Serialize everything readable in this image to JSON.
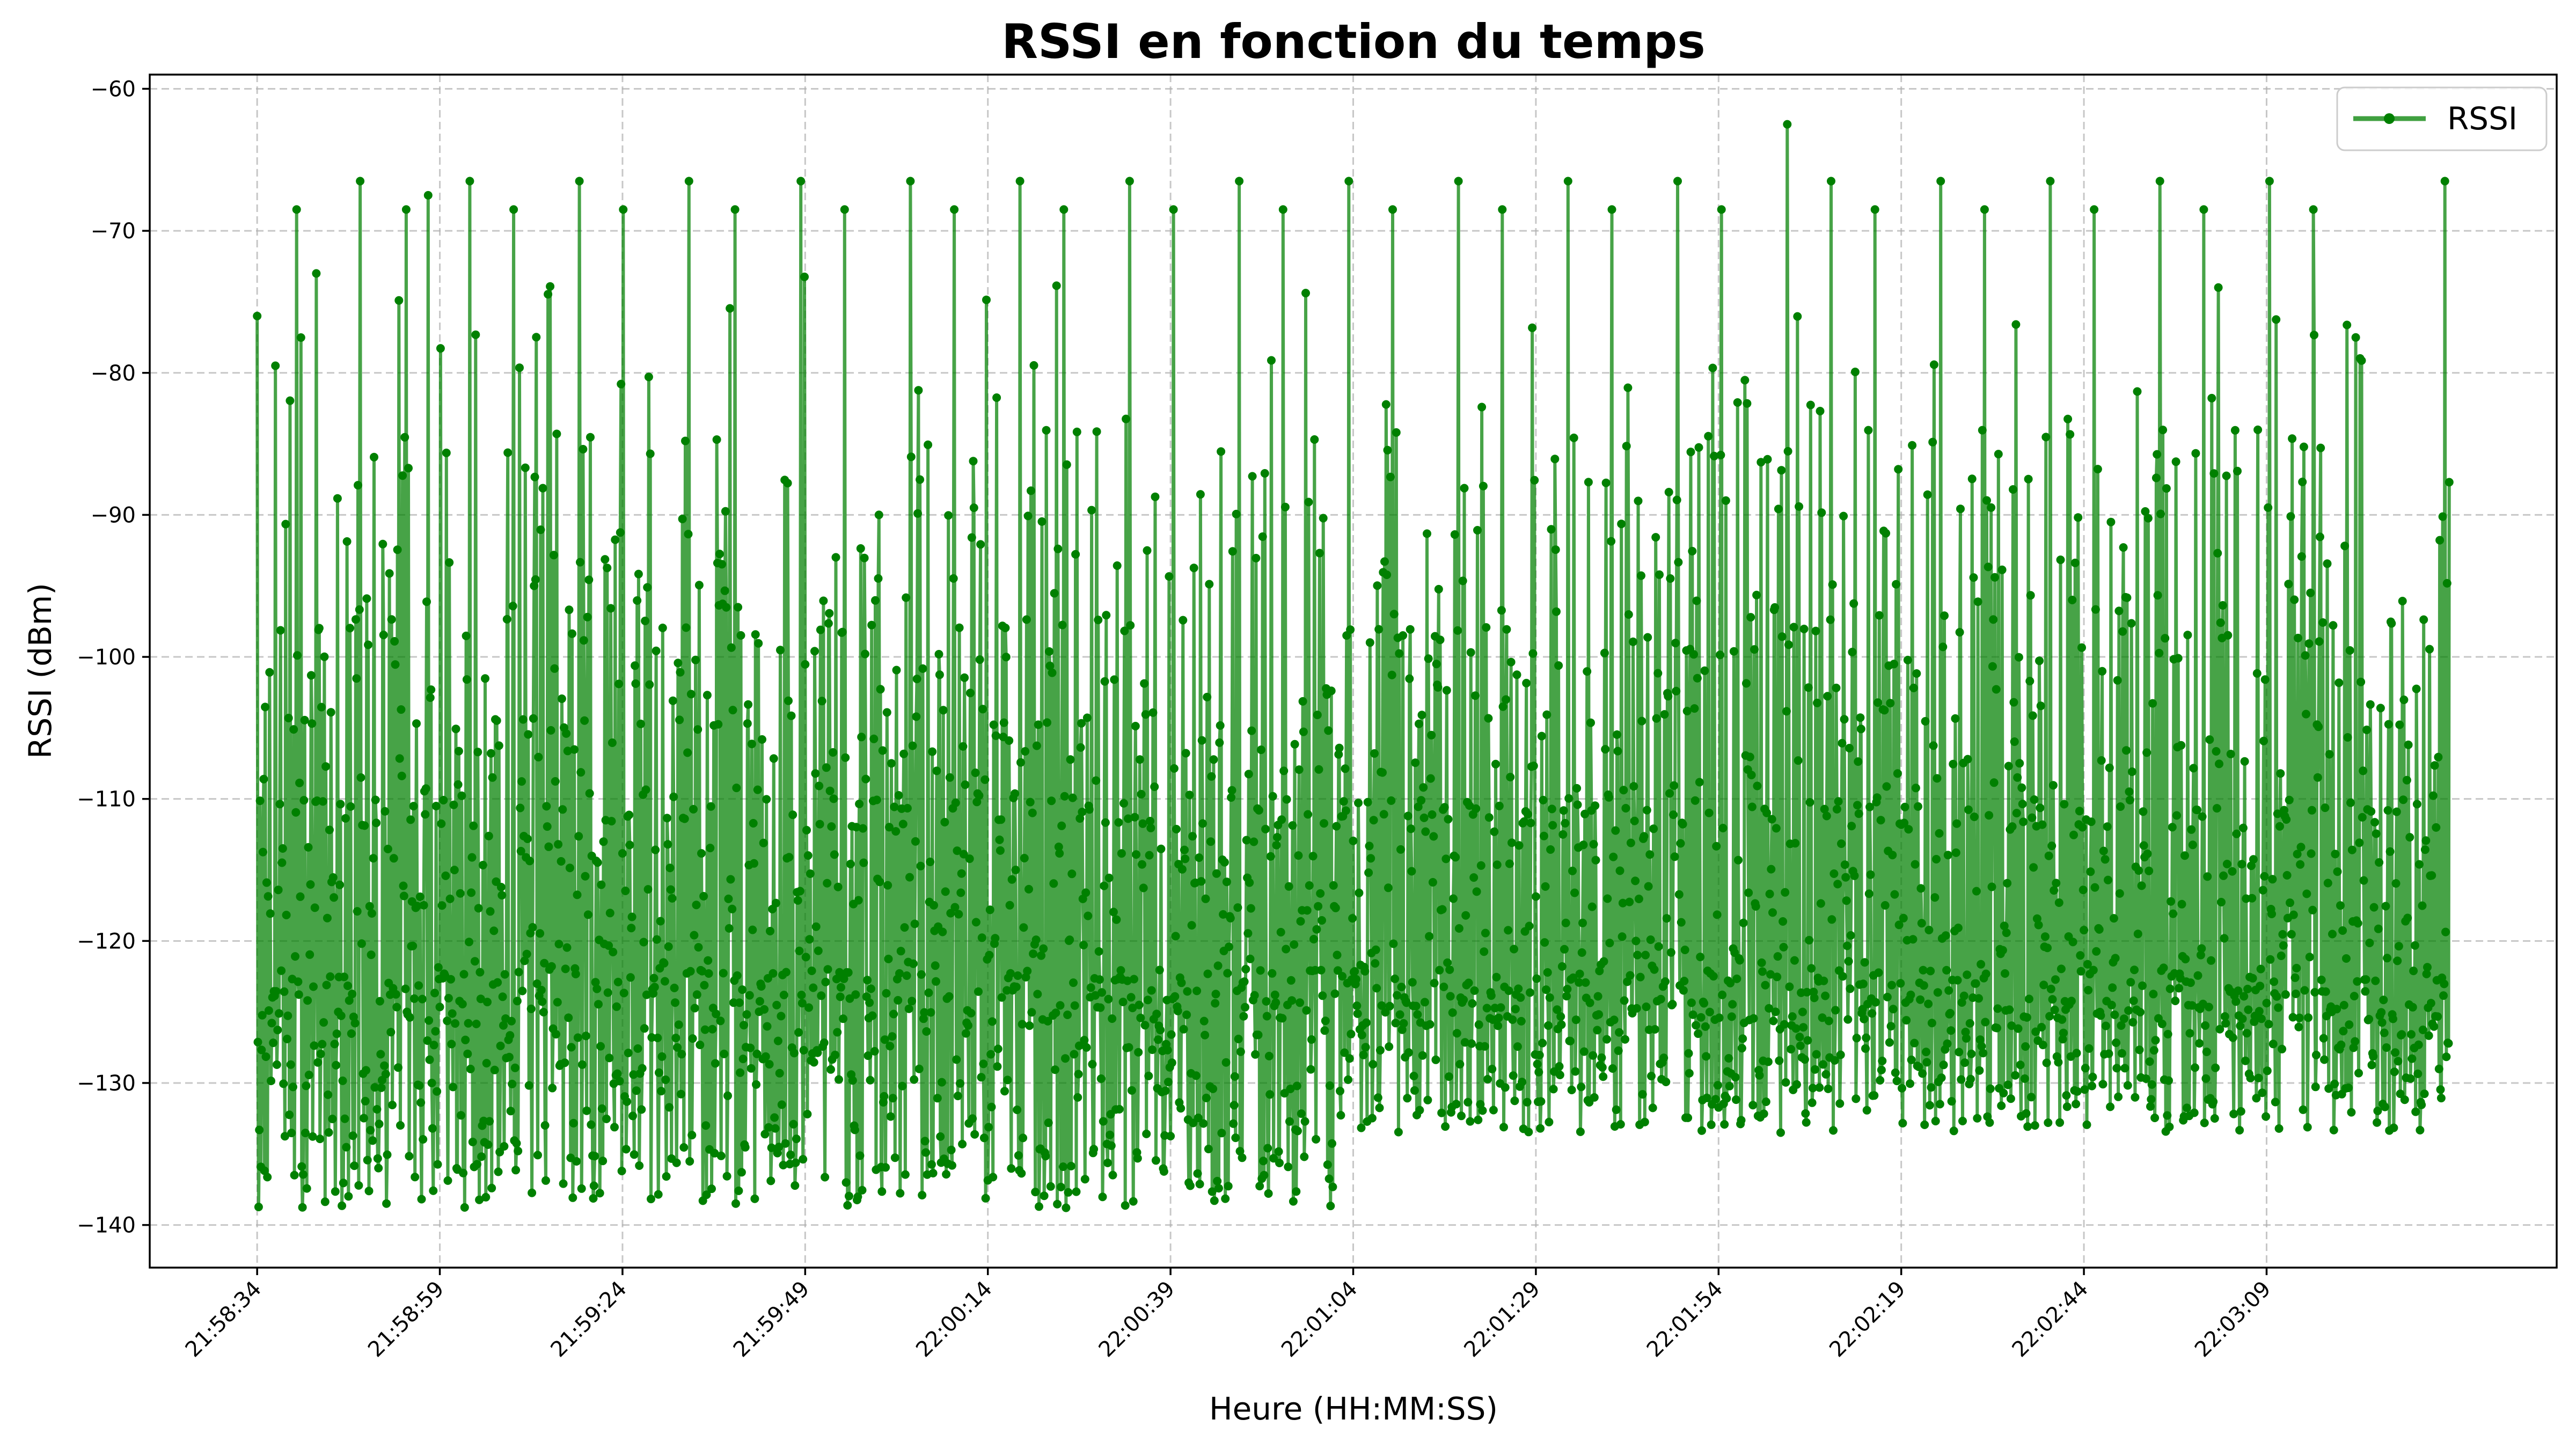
{
  "chart_data": {
    "type": "line",
    "title": "RSSI en fonction du temps",
    "xlabel": "Heure (HH:MM:SS)",
    "ylabel": "RSSI (dBm)",
    "x_ticks": [
      "21:58:34",
      "21:58:59",
      "21:59:24",
      "21:59:49",
      "22:00:14",
      "22:00:39",
      "22:01:04",
      "22:01:29",
      "22:01:54",
      "22:02:19",
      "22:02:44",
      "22:03:09"
    ],
    "x_tick_seconds": [
      0,
      25,
      50,
      75,
      100,
      125,
      150,
      175,
      200,
      225,
      250,
      275
    ],
    "xlim_seconds": [
      -14.7,
      314.7
    ],
    "data_x_range_seconds": [
      0,
      300
    ],
    "y_ticks": [
      -60,
      -70,
      -80,
      -90,
      -100,
      -110,
      -120,
      -130,
      -140
    ],
    "ylim": [
      -143,
      -59
    ],
    "grid": true,
    "legend": {
      "placement": "upper-right",
      "entries": [
        "RSSI"
      ]
    },
    "series": [
      {
        "name": "RSSI",
        "color": "#008000",
        "marker": "circle",
        "sample_rate_hz": 10,
        "approx_min": -139,
        "approx_max": -62.5,
        "peaks": [
          {
            "t": 0,
            "v": -76
          },
          {
            "t": 2.5,
            "v": -79.5
          },
          {
            "t": 5.4,
            "v": -68.5
          },
          {
            "t": 8.1,
            "v": -73
          },
          {
            "t": 14.1,
            "v": -66.5
          },
          {
            "t": 20.4,
            "v": -68.5
          },
          {
            "t": 23.4,
            "v": -67.5
          },
          {
            "t": 29.1,
            "v": -66.5
          },
          {
            "t": 35.1,
            "v": -68.5
          },
          {
            "t": 44.1,
            "v": -66.5
          },
          {
            "t": 50.1,
            "v": -68.5
          },
          {
            "t": 59.1,
            "v": -66.5
          },
          {
            "t": 65.4,
            "v": -68.5
          },
          {
            "t": 74.4,
            "v": -66.5
          },
          {
            "t": 80.4,
            "v": -68.5
          },
          {
            "t": 89.4,
            "v": -66.5
          },
          {
            "t": 95.4,
            "v": -68.5
          },
          {
            "t": 104.4,
            "v": -66.5
          },
          {
            "t": 110.4,
            "v": -68.5
          },
          {
            "t": 119.4,
            "v": -66.5
          },
          {
            "t": 125.4,
            "v": -68.5
          },
          {
            "t": 134.4,
            "v": -66.5
          },
          {
            "t": 140.4,
            "v": -68.5
          },
          {
            "t": 149.4,
            "v": -66.5
          },
          {
            "t": 155.4,
            "v": -68.5
          },
          {
            "t": 164.4,
            "v": -66.5
          },
          {
            "t": 170.4,
            "v": -68.5
          },
          {
            "t": 179.4,
            "v": -66.5
          },
          {
            "t": 185.4,
            "v": -68.5
          },
          {
            "t": 194.4,
            "v": -66.5
          },
          {
            "t": 200.4,
            "v": -68.5
          },
          {
            "t": 209.4,
            "v": -62.5
          },
          {
            "t": 215.4,
            "v": -66.5
          },
          {
            "t": 221.4,
            "v": -68.5
          },
          {
            "t": 230.4,
            "v": -66.5
          },
          {
            "t": 236.4,
            "v": -68.5
          },
          {
            "t": 245.4,
            "v": -66.5
          },
          {
            "t": 251.4,
            "v": -68.5
          },
          {
            "t": 260.4,
            "v": -66.5
          },
          {
            "t": 266.4,
            "v": -68.5
          },
          {
            "t": 275.4,
            "v": -66.5
          },
          {
            "t": 281.4,
            "v": -68.5
          },
          {
            "t": 299.4,
            "v": -66.5
          }
        ]
      }
    ]
  }
}
